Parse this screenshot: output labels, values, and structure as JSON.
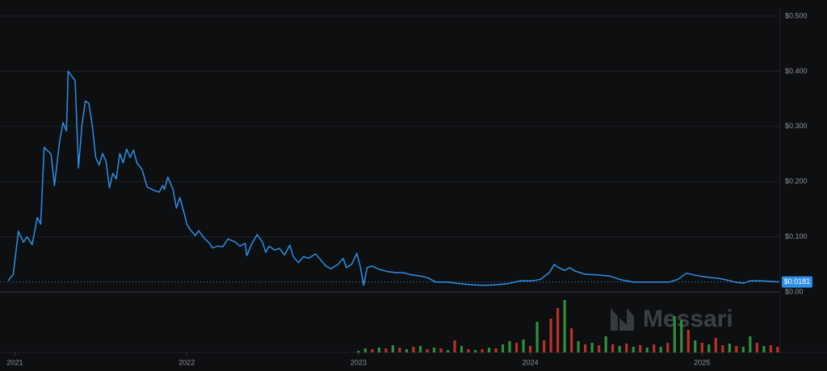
{
  "chart_data": {
    "type": "line",
    "color": "#2e8fe6",
    "x": [
      2020.96,
      2020.99,
      2021.02,
      2021.05,
      2021.07,
      2021.1,
      2021.13,
      2021.15,
      2021.17,
      2021.21,
      2021.23,
      2021.26,
      2021.28,
      2021.3,
      2021.31,
      2021.35,
      2021.37,
      2021.39,
      2021.41,
      2021.43,
      2021.45,
      2021.47,
      2021.49,
      2021.51,
      2021.53,
      2021.55,
      2021.57,
      2021.59,
      2021.61,
      2021.63,
      2021.65,
      2021.67,
      2021.69,
      2021.71,
      2021.74,
      2021.77,
      2021.81,
      2021.84,
      2021.86,
      2021.87,
      2021.89,
      2021.92,
      2021.94,
      2021.96,
      2021.99,
      2022.0,
      2022.02,
      2022.05,
      2022.07,
      2022.1,
      2022.13,
      2022.15,
      2022.18,
      2022.21,
      2022.24,
      2022.28,
      2022.31,
      2022.34,
      2022.35,
      2022.38,
      2022.41,
      2022.44,
      2022.46,
      2022.48,
      2022.51,
      2022.54,
      2022.57,
      2022.6,
      2022.62,
      2022.65,
      2022.68,
      2022.71,
      2022.75,
      2022.78,
      2022.81,
      2022.84,
      2022.88,
      2022.91,
      2022.93,
      2022.96,
      2022.99,
      2023.01,
      2023.03,
      2023.05,
      2023.08,
      2023.12,
      2023.17,
      2023.22,
      2023.26,
      2023.31,
      2023.36,
      2023.4,
      2023.45,
      2023.52,
      2023.59,
      2023.66,
      2023.73,
      2023.8,
      2023.87,
      2023.94,
      2024.01,
      2024.06,
      2024.11,
      2024.14,
      2024.16,
      2024.2,
      2024.23,
      2024.26,
      2024.32,
      2024.39,
      2024.46,
      2024.53,
      2024.6,
      2024.67,
      2024.74,
      2024.81,
      2024.86,
      2024.91,
      2024.95,
      2025.0,
      2025.05,
      2025.09,
      2025.14,
      2025.19,
      2025.24,
      2025.28,
      2025.35,
      2025.45
    ],
    "values": [
      0.02,
      0.032,
      0.11,
      0.09,
      0.1,
      0.086,
      0.135,
      0.123,
      0.262,
      0.25,
      0.193,
      0.273,
      0.307,
      0.292,
      0.4,
      0.383,
      0.225,
      0.303,
      0.346,
      0.342,
      0.303,
      0.244,
      0.23,
      0.251,
      0.237,
      0.189,
      0.215,
      0.205,
      0.251,
      0.234,
      0.259,
      0.244,
      0.257,
      0.234,
      0.222,
      0.19,
      0.184,
      0.181,
      0.193,
      0.186,
      0.208,
      0.186,
      0.152,
      0.171,
      0.137,
      0.123,
      0.113,
      0.102,
      0.111,
      0.098,
      0.089,
      0.08,
      0.083,
      0.082,
      0.096,
      0.091,
      0.083,
      0.088,
      0.066,
      0.088,
      0.104,
      0.091,
      0.072,
      0.083,
      0.076,
      0.079,
      0.067,
      0.085,
      0.064,
      0.053,
      0.064,
      0.061,
      0.069,
      0.058,
      0.047,
      0.042,
      0.05,
      0.061,
      0.044,
      0.05,
      0.07,
      0.047,
      0.012,
      0.044,
      0.047,
      0.041,
      0.037,
      0.035,
      0.035,
      0.031,
      0.029,
      0.026,
      0.018,
      0.018,
      0.015,
      0.013,
      0.012,
      0.013,
      0.015,
      0.02,
      0.02,
      0.023,
      0.035,
      0.05,
      0.045,
      0.039,
      0.044,
      0.038,
      0.032,
      0.031,
      0.029,
      0.022,
      0.018,
      0.018,
      0.018,
      0.018,
      0.023,
      0.034,
      0.031,
      0.028,
      0.026,
      0.025,
      0.022,
      0.018,
      0.016,
      0.02,
      0.02,
      0.0181
    ],
    "xlim": [
      2020.96,
      2025.45
    ],
    "xticks": [
      2021,
      2022,
      2023,
      2024,
      2025
    ],
    "ylim": [
      0,
      0.5
    ],
    "yticks": [
      {
        "value": 0,
        "label": "$0.00"
      },
      {
        "value": 0.1,
        "label": "$0.100"
      },
      {
        "value": 0.2,
        "label": "$0.200"
      },
      {
        "value": 0.3,
        "label": "$0.300"
      },
      {
        "value": 0.4,
        "label": "$0.400"
      },
      {
        "value": 0.5,
        "label": "$0.500"
      }
    ],
    "grid": true,
    "current_price": {
      "value": 0.0181,
      "label": "$0.0181"
    },
    "watermark": "Messari",
    "volume": {
      "x": [
        2023.0,
        2023.04,
        2023.08,
        2023.12,
        2023.16,
        2023.2,
        2023.24,
        2023.28,
        2023.32,
        2023.36,
        2023.4,
        2023.44,
        2023.48,
        2023.52,
        2023.56,
        2023.6,
        2023.64,
        2023.68,
        2023.72,
        2023.76,
        2023.8,
        2023.84,
        2023.88,
        2023.92,
        2023.96,
        2024.0,
        2024.04,
        2024.08,
        2024.12,
        2024.16,
        2024.2,
        2024.24,
        2024.28,
        2024.32,
        2024.36,
        2024.4,
        2024.44,
        2024.48,
        2024.52,
        2024.56,
        2024.6,
        2024.64,
        2024.68,
        2024.72,
        2024.76,
        2024.8,
        2024.84,
        2024.88,
        2024.92,
        2024.96,
        2025.0,
        2025.04,
        2025.08,
        2025.12,
        2025.16,
        2025.2,
        2025.24,
        2025.28,
        2025.32,
        2025.36,
        2025.4,
        2025.44
      ],
      "values": [
        2,
        5,
        4,
        6,
        5,
        9,
        6,
        4,
        7,
        8,
        4,
        6,
        5,
        3,
        15,
        8,
        4,
        3,
        4,
        6,
        5,
        10,
        14,
        12,
        16,
        8,
        38,
        15,
        42,
        55,
        65,
        30,
        14,
        10,
        12,
        9,
        20,
        10,
        8,
        11,
        7,
        9,
        6,
        10,
        7,
        12,
        45,
        40,
        28,
        15,
        12,
        10,
        18,
        9,
        11,
        8,
        7,
        20,
        12,
        8,
        9,
        7
      ],
      "colors": [
        "#2f8f3e",
        "#2f8f3e",
        "#b8322a",
        "#2f8f3e",
        "#b8322a",
        "#2f8f3e",
        "#b8322a",
        "#2f8f3e",
        "#b8322a",
        "#2f8f3e",
        "#b8322a",
        "#2f8f3e",
        "#b8322a",
        "#2f8f3e",
        "#b8322a",
        "#2f8f3e",
        "#b8322a",
        "#2f8f3e",
        "#b8322a",
        "#2f8f3e",
        "#b8322a",
        "#2f8f3e",
        "#2f8f3e",
        "#b8322a",
        "#2f8f3e",
        "#b8322a",
        "#2f8f3e",
        "#b8322a",
        "#b8322a",
        "#b8322a",
        "#2f8f3e",
        "#b8322a",
        "#2f8f3e",
        "#b8322a",
        "#2f8f3e",
        "#b8322a",
        "#2f8f3e",
        "#b8322a",
        "#2f8f3e",
        "#b8322a",
        "#2f8f3e",
        "#b8322a",
        "#2f8f3e",
        "#b8322a",
        "#2f8f3e",
        "#b8322a",
        "#2f8f3e",
        "#2f8f3e",
        "#b8322a",
        "#2f8f3e",
        "#b8322a",
        "#2f8f3e",
        "#b8322a",
        "#b8322a",
        "#2f8f3e",
        "#b8322a",
        "#2f8f3e",
        "#2f8f3e",
        "#b8322a",
        "#2f8f3e",
        "#b8322a",
        "#b8322a"
      ],
      "vlim": [
        0,
        70
      ]
    }
  }
}
